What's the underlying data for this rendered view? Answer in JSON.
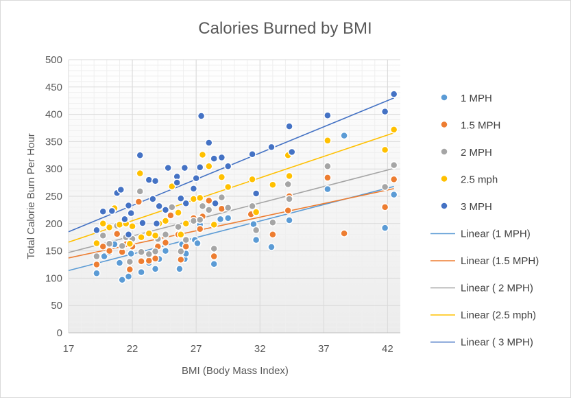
{
  "chart_data": {
    "type": "scatter",
    "title": "Calories  Burned  by BMI",
    "xlabel": "BMI (Body Mass Index)",
    "ylabel": "Total Calorie Burn Per Hour",
    "xlim": [
      17,
      43
    ],
    "ylim": [
      0,
      500
    ],
    "xticks": [
      "17",
      "22",
      "27",
      "32",
      "37",
      "42"
    ],
    "yticks": [
      "0",
      "50",
      "100",
      "150",
      "200",
      "250",
      "300",
      "350",
      "400",
      "450",
      "500"
    ],
    "grid": true,
    "legend_position": "right",
    "series": [
      {
        "name": "1 MPH",
        "color": "#5b9bd5",
        "points": [
          [
            19.2,
            109
          ],
          [
            19.8,
            140
          ],
          [
            20.2,
            147
          ],
          [
            20.6,
            162
          ],
          [
            21.0,
            128
          ],
          [
            21.2,
            97
          ],
          [
            21.7,
            103
          ],
          [
            21.9,
            145
          ],
          [
            22.7,
            111
          ],
          [
            23.3,
            128
          ],
          [
            23.8,
            117
          ],
          [
            24.1,
            135
          ],
          [
            24.6,
            150
          ],
          [
            25.7,
            117
          ],
          [
            25.9,
            162
          ],
          [
            26.1,
            135
          ],
          [
            26.2,
            145
          ],
          [
            26.9,
            170
          ],
          [
            27.1,
            164
          ],
          [
            27.3,
            198
          ],
          [
            28.4,
            126
          ],
          [
            28.9,
            208
          ],
          [
            29.5,
            210
          ],
          [
            31.5,
            199
          ],
          [
            31.7,
            170
          ],
          [
            32.9,
            157
          ],
          [
            34.3,
            206
          ],
          [
            37.3,
            263
          ],
          [
            38.6,
            361
          ],
          [
            41.8,
            192
          ],
          [
            42.5,
            253
          ]
        ]
      },
      {
        "name": "1.5 MPH",
        "color": "#ed7d31",
        "points": [
          [
            19.2,
            125
          ],
          [
            19.7,
            158
          ],
          [
            20.2,
            150
          ],
          [
            20.8,
            181
          ],
          [
            21.2,
            148
          ],
          [
            21.5,
            162
          ],
          [
            21.8,
            116
          ],
          [
            22.0,
            158
          ],
          [
            22.5,
            240
          ],
          [
            22.7,
            131
          ],
          [
            23.3,
            132
          ],
          [
            23.8,
            136
          ],
          [
            24.0,
            158
          ],
          [
            24.6,
            165
          ],
          [
            25.0,
            215
          ],
          [
            25.6,
            180
          ],
          [
            25.8,
            134
          ],
          [
            26.2,
            158
          ],
          [
            26.8,
            210
          ],
          [
            27.3,
            190
          ],
          [
            27.5,
            213
          ],
          [
            28.0,
            242
          ],
          [
            28.4,
            140
          ],
          [
            29.0,
            227
          ],
          [
            31.3,
            217
          ],
          [
            33.0,
            180
          ],
          [
            34.2,
            224
          ],
          [
            34.3,
            250
          ],
          [
            37.3,
            284
          ],
          [
            38.6,
            182
          ],
          [
            41.8,
            230
          ],
          [
            42.5,
            281
          ]
        ]
      },
      {
        "name": " 2 MPH",
        "color": "#a5a5a5",
        "points": [
          [
            19.2,
            140
          ],
          [
            19.7,
            178
          ],
          [
            20.2,
            163
          ],
          [
            20.8,
            196
          ],
          [
            21.2,
            159
          ],
          [
            21.5,
            175
          ],
          [
            21.8,
            130
          ],
          [
            22.0,
            172
          ],
          [
            22.6,
            259
          ],
          [
            22.7,
            148
          ],
          [
            23.3,
            144
          ],
          [
            23.8,
            149
          ],
          [
            24.0,
            172
          ],
          [
            24.6,
            180
          ],
          [
            25.1,
            230
          ],
          [
            25.6,
            194
          ],
          [
            25.8,
            149
          ],
          [
            26.2,
            170
          ],
          [
            26.8,
            205
          ],
          [
            27.3,
            207
          ],
          [
            27.5,
            232
          ],
          [
            28.0,
            225
          ],
          [
            28.4,
            154
          ],
          [
            29.0,
            248
          ],
          [
            29.5,
            229
          ],
          [
            31.4,
            232
          ],
          [
            31.7,
            188
          ],
          [
            33.0,
            202
          ],
          [
            34.3,
            245
          ],
          [
            34.2,
            272
          ],
          [
            37.3,
            305
          ],
          [
            41.8,
            267
          ],
          [
            42.5,
            307
          ]
        ]
      },
      {
        "name": "2.5 mph",
        "color": "#ffc000",
        "points": [
          [
            19.2,
            164
          ],
          [
            19.7,
            200
          ],
          [
            20.2,
            193
          ],
          [
            20.6,
            228
          ],
          [
            21.0,
            198
          ],
          [
            21.5,
            200
          ],
          [
            21.8,
            163
          ],
          [
            22.0,
            195
          ],
          [
            22.6,
            292
          ],
          [
            22.7,
            175
          ],
          [
            23.3,
            182
          ],
          [
            23.8,
            178
          ],
          [
            24.1,
            200
          ],
          [
            24.6,
            205
          ],
          [
            25.1,
            268
          ],
          [
            25.6,
            220
          ],
          [
            25.8,
            180
          ],
          [
            26.2,
            200
          ],
          [
            26.8,
            245
          ],
          [
            27.3,
            247
          ],
          [
            27.5,
            326
          ],
          [
            28.0,
            305
          ],
          [
            28.4,
            198
          ],
          [
            29.0,
            285
          ],
          [
            29.5,
            267
          ],
          [
            31.4,
            281
          ],
          [
            31.7,
            221
          ],
          [
            33.0,
            271
          ],
          [
            34.2,
            325
          ],
          [
            34.3,
            287
          ],
          [
            37.3,
            352
          ],
          [
            41.8,
            335
          ],
          [
            42.5,
            372
          ]
        ]
      },
      {
        "name": " 3 MPH",
        "color": "#4472c4",
        "points": [
          [
            19.2,
            188
          ],
          [
            19.7,
            222
          ],
          [
            20.4,
            223
          ],
          [
            20.8,
            256
          ],
          [
            21.1,
            262
          ],
          [
            21.4,
            208
          ],
          [
            21.7,
            233
          ],
          [
            21.7,
            180
          ],
          [
            21.9,
            219
          ],
          [
            22.6,
            325
          ],
          [
            22.8,
            201
          ],
          [
            23.3,
            280
          ],
          [
            23.6,
            245
          ],
          [
            23.8,
            278
          ],
          [
            23.9,
            200
          ],
          [
            24.1,
            232
          ],
          [
            24.6,
            225
          ],
          [
            24.8,
            302
          ],
          [
            25.5,
            286
          ],
          [
            25.5,
            275
          ],
          [
            25.8,
            246
          ],
          [
            26.1,
            302
          ],
          [
            26.2,
            237
          ],
          [
            26.8,
            264
          ],
          [
            27.0,
            283
          ],
          [
            27.3,
            303
          ],
          [
            27.4,
            397
          ],
          [
            28.0,
            348
          ],
          [
            28.4,
            319
          ],
          [
            28.5,
            237
          ],
          [
            29.0,
            321
          ],
          [
            29.5,
            305
          ],
          [
            31.4,
            327
          ],
          [
            31.7,
            255
          ],
          [
            32.9,
            340
          ],
          [
            34.3,
            378
          ],
          [
            34.5,
            331
          ],
          [
            37.3,
            398
          ],
          [
            41.8,
            405
          ],
          [
            42.5,
            437
          ]
        ]
      }
    ],
    "trendlines": [
      {
        "name": "Linear  (1 MPH)",
        "color": "#5b9bd5",
        "from": [
          17,
          114
        ],
        "to": [
          42.5,
          268
        ]
      },
      {
        "name": "Linear  (1.5 MPH)",
        "color": "#ed7d31",
        "from": [
          17,
          137
        ],
        "to": [
          42.5,
          264
        ]
      },
      {
        "name": "Linear  ( 2 MPH)",
        "color": "#a5a5a5",
        "from": [
          17,
          147
        ],
        "to": [
          42.5,
          301
        ]
      },
      {
        "name": "Linear  (2.5 mph)",
        "color": "#ffc000",
        "from": [
          17,
          166
        ],
        "to": [
          42.5,
          366
        ]
      },
      {
        "name": "Linear  ( 3 MPH)",
        "color": "#4472c4",
        "from": [
          17,
          185
        ],
        "to": [
          42.5,
          430
        ]
      }
    ]
  }
}
